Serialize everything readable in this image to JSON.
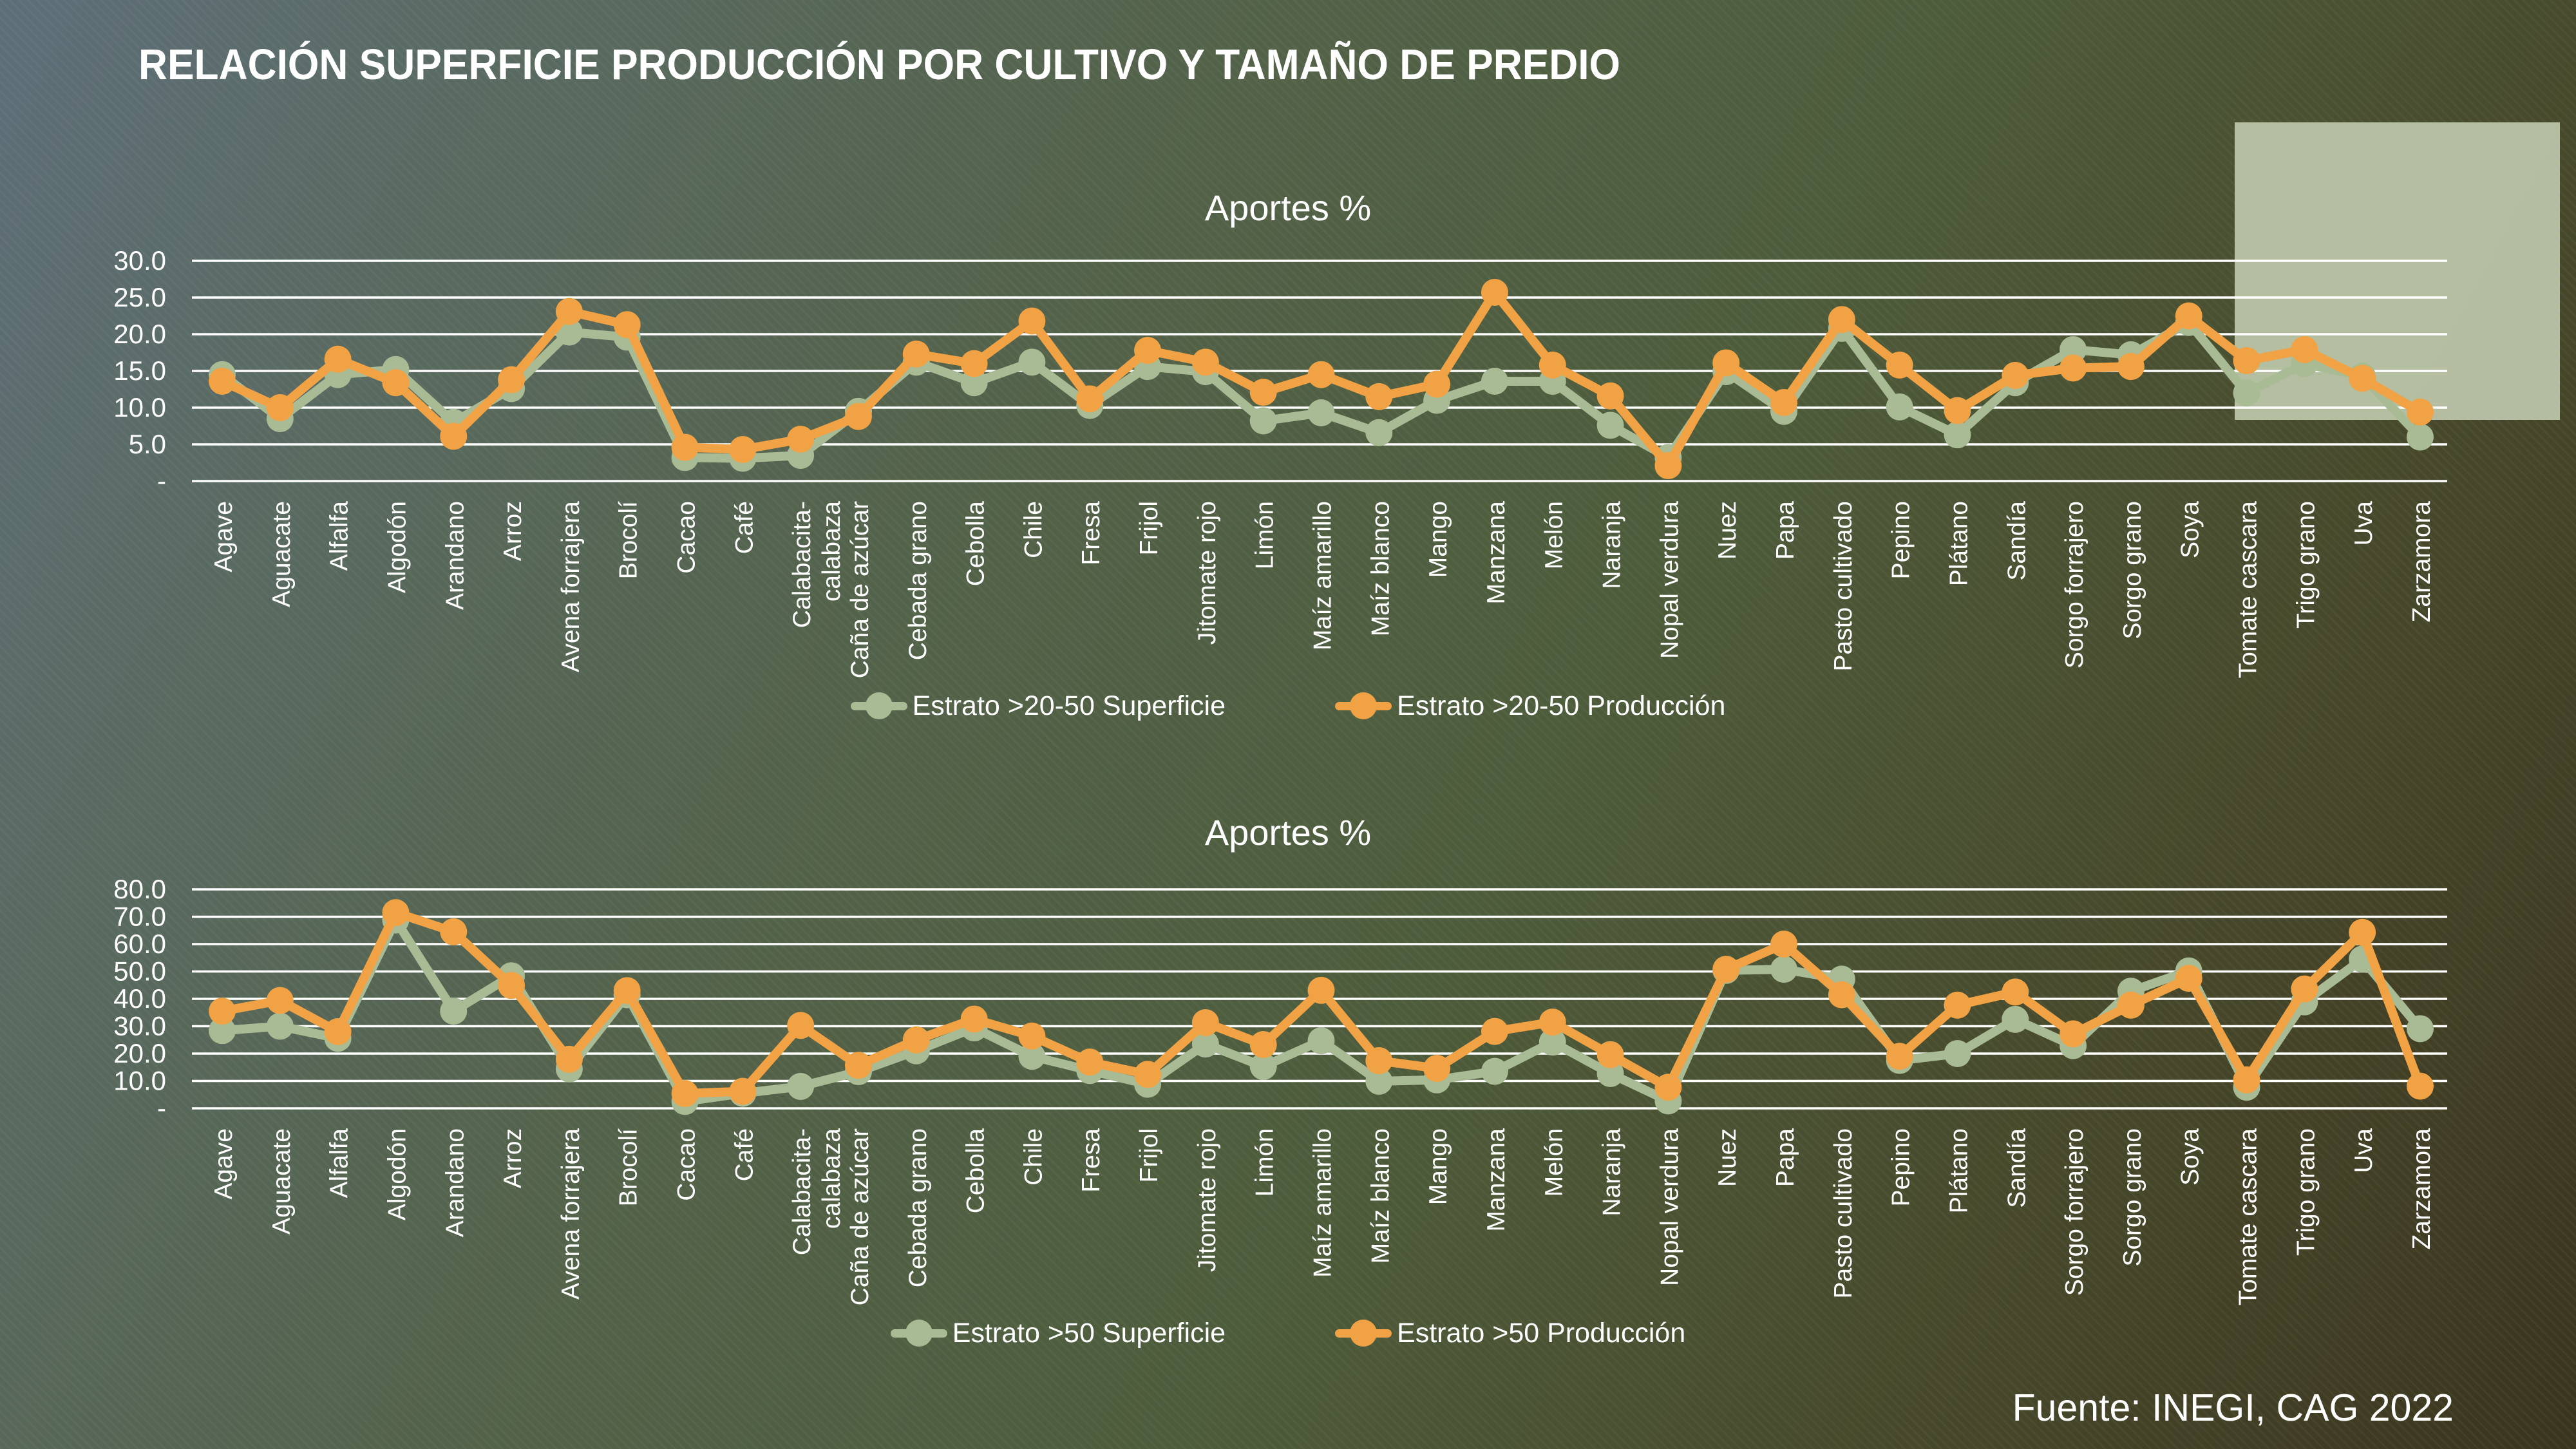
{
  "slide": {
    "title": "RELACIÓN SUPERFICIE PRODUCCIÓN POR CULTIVO Y TAMAÑO DE PREDIO",
    "source": "Fuente: INEGI, CAG 2022",
    "background_colors": {
      "top_left": "#5E6E79",
      "middle": "#4D5C3B",
      "bottom_right": "#3A351E"
    },
    "highlight_box_color": "#BAC4A8",
    "gridline_color": "#FFFFFF",
    "text_color": "#FFFFFF"
  },
  "chart_data": [
    {
      "type": "line",
      "title": "Aportes %",
      "xlabel": "",
      "ylabel": "",
      "ylim": [
        0,
        30
      ],
      "ytick_step": 5,
      "ytick_labels": [
        "-",
        "5.0",
        "10.0",
        "15.0",
        "20.0",
        "25.0",
        "30.0"
      ],
      "grid": true,
      "legend_position": "bottom",
      "categories": [
        "Agave",
        "Aguacate",
        "Alfalfa",
        "Algodón",
        "Arandano",
        "Arroz",
        "Avena forrajera",
        "Brocolí",
        "Cacao",
        "Café",
        "Calabacita-\ncalabaza",
        "Caña de azúcar",
        "Cebada grano",
        "Cebolla",
        "Chile",
        "Fresa",
        "Frijol",
        "Jitomate rojo",
        "Limón",
        "Maíz amarillo",
        "Maíz blanco",
        "Mango",
        "Manzana",
        "Melón",
        "Naranja",
        "Nopal verdura",
        "Nuez",
        "Papa",
        "Pasto cultivado",
        "Pepino",
        "Plátano",
        "Sandía",
        "Sorgo forrajero",
        "Sorgo grano",
        "Soya",
        "Tomate cascara",
        "Trigo grano",
        "Uva",
        "Zarzamora"
      ],
      "series": [
        {
          "name": "Estrato >20-50 Superficie",
          "color": "#A9BB95",
          "values": [
            14.5,
            8.5,
            14.5,
            15.2,
            8.0,
            12.6,
            20.3,
            19.6,
            3.2,
            3.1,
            3.5,
            9.5,
            16.2,
            13.4,
            16.2,
            10.3,
            15.6,
            14.9,
            8.2,
            9.3,
            6.6,
            11.0,
            13.6,
            13.6,
            7.6,
            3.2,
            14.9,
            9.5,
            20.8,
            10.1,
            6.3,
            13.4,
            17.9,
            17.2,
            21.6,
            12.0,
            16.0,
            14.3,
            6.0
          ]
        },
        {
          "name": "Estrato >20-50 Producción",
          "color": "#F0A245",
          "values": [
            13.6,
            10.0,
            16.6,
            13.4,
            6.1,
            13.8,
            23.1,
            21.3,
            4.6,
            4.3,
            5.7,
            8.8,
            17.3,
            16.0,
            21.8,
            11.2,
            17.8,
            16.2,
            12.1,
            14.5,
            11.5,
            13.2,
            25.7,
            15.8,
            11.6,
            2.1,
            16.1,
            10.7,
            22.0,
            15.8,
            9.6,
            14.4,
            15.4,
            15.6,
            22.5,
            16.4,
            17.9,
            14.0,
            9.4
          ]
        }
      ]
    },
    {
      "type": "line",
      "title": "Aportes %",
      "xlabel": "",
      "ylabel": "",
      "ylim": [
        0,
        80
      ],
      "ytick_step": 10,
      "ytick_labels": [
        "-",
        "10.0",
        "20.0",
        "30.0",
        "40.0",
        "50.0",
        "60.0",
        "70.0",
        "80.0"
      ],
      "grid": true,
      "legend_position": "bottom",
      "categories": [
        "Agave",
        "Aguacate",
        "Alfalfa",
        "Algodón",
        "Arandano",
        "Arroz",
        "Avena forrajera",
        "Brocolí",
        "Cacao",
        "Café",
        "Calabacita-\ncalabaza",
        "Caña de azúcar",
        "Cebada grano",
        "Cebolla",
        "Chile",
        "Fresa",
        "Frijol",
        "Jitomate rojo",
        "Limón",
        "Maíz amarillo",
        "Maíz blanco",
        "Mango",
        "Manzana",
        "Melón",
        "Naranja",
        "Nopal verdura",
        "Nuez",
        "Papa",
        "Pasto cultivado",
        "Pepino",
        "Plátano",
        "Sandía",
        "Sorgo forrajero",
        "Sorgo grano",
        "Soya",
        "Tomate cascara",
        "Trigo grano",
        "Uva",
        "Zarzamora"
      ],
      "series": [
        {
          "name": "Estrato >50 Superficie",
          "color": "#A9BB95",
          "values": [
            28.4,
            30.0,
            25.6,
            68.8,
            35.5,
            48.4,
            14.4,
            41.5,
            2.5,
            5.5,
            8.0,
            13.4,
            21.0,
            29.4,
            19.0,
            13.8,
            8.8,
            23.5,
            15.3,
            24.7,
            9.9,
            10.4,
            13.5,
            24.2,
            12.7,
            2.7,
            50.4,
            50.8,
            47.2,
            17.5,
            20.0,
            32.5,
            22.9,
            42.8,
            50.2,
            7.7,
            38.9,
            54.5,
            29.1
          ]
        },
        {
          "name": "Estrato >50 Producción",
          "color": "#F0A245",
          "values": [
            35.5,
            39.4,
            28.0,
            71.5,
            64.5,
            44.9,
            17.9,
            43.0,
            5.4,
            6.2,
            30.3,
            15.7,
            25.0,
            32.6,
            26.4,
            16.9,
            12.4,
            31.3,
            23.3,
            43.1,
            17.4,
            14.6,
            28.1,
            31.5,
            19.6,
            7.7,
            50.8,
            60.0,
            41.5,
            19.0,
            37.7,
            42.5,
            27.2,
            37.7,
            47.5,
            10.4,
            43.6,
            64.3,
            8.1
          ]
        }
      ]
    }
  ]
}
